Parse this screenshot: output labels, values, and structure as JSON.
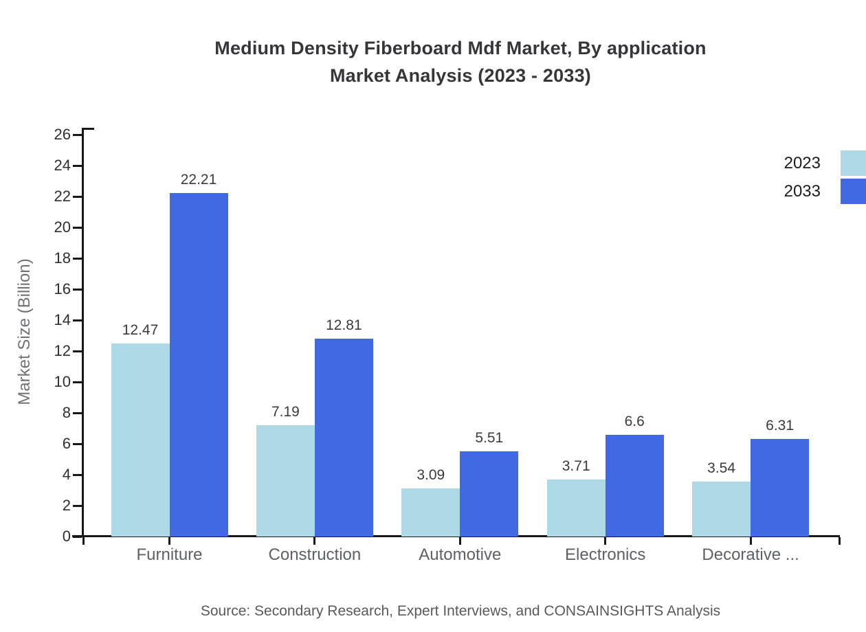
{
  "title": {
    "line1": "Medium Density Fiberboard Mdf Market, By application",
    "line2": "Market Analysis (2023 - 2033)"
  },
  "source": "Source: Secondary Research, Expert Interviews, and CONSAINSIGHTS Analysis",
  "chart_data": {
    "type": "bar",
    "title": "Medium Density Fiberboard Mdf Market, By application Market Analysis (2023 - 2033)",
    "categories": [
      "Furniture",
      "Construction",
      "Automotive",
      "Electronics",
      "Decorative ..."
    ],
    "series": [
      {
        "name": "2023",
        "color": "#ADD8E6",
        "values": [
          12.47,
          7.19,
          3.09,
          3.71,
          3.54
        ]
      },
      {
        "name": "2033",
        "color": "#4169E1",
        "values": [
          22.21,
          12.81,
          5.51,
          6.6,
          6.31
        ]
      }
    ],
    "xlabel": "",
    "ylabel": "Market Size (Billion)",
    "ylim": [
      0,
      26
    ],
    "ytick_step": 2,
    "grid": false,
    "legend_position": "top-right",
    "background": "#ffffff",
    "axis_color": "#18181a"
  }
}
